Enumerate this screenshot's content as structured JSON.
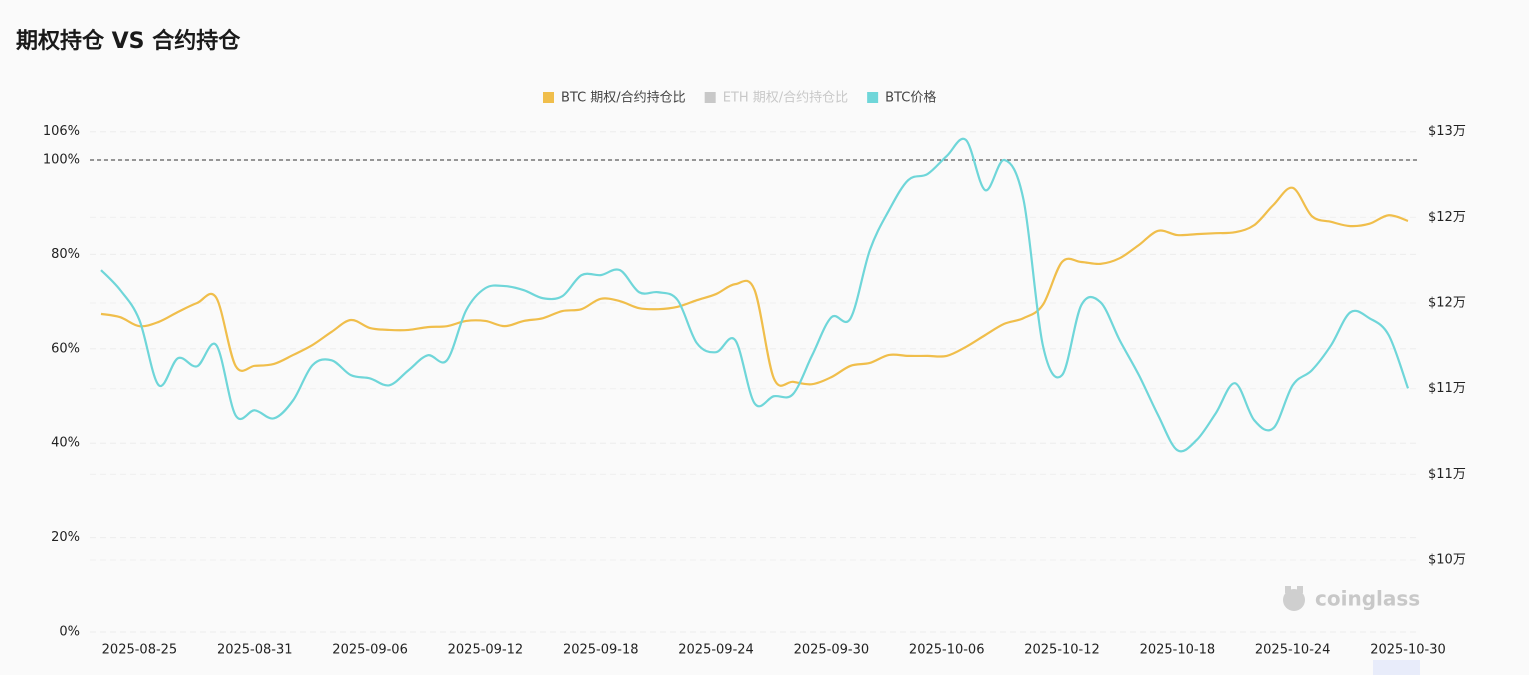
{
  "chart_data": {
    "type": "line",
    "title": "期权持仓 VS 合约持仓",
    "categories": [
      null,
      null,
      "2025-08-25",
      null,
      null,
      null,
      null,
      null,
      "2025-08-31",
      null,
      null,
      null,
      null,
      null,
      "2025-09-06",
      null,
      null,
      null,
      null,
      null,
      "2025-09-12",
      null,
      null,
      null,
      null,
      null,
      "2025-09-18",
      null,
      null,
      null,
      null,
      null,
      "2025-09-24",
      null,
      null,
      null,
      null,
      null,
      "2025-09-30",
      null,
      null,
      null,
      null,
      null,
      "2025-10-06",
      null,
      null,
      null,
      null,
      null,
      "2025-10-12",
      null,
      null,
      null,
      null,
      null,
      "2025-10-18",
      null,
      null,
      null,
      null,
      null,
      "2025-10-24",
      null,
      null,
      null,
      null,
      null,
      "2025-10-30"
    ],
    "series": [
      {
        "name": "BTC 期权/合约持仓比",
        "color": "#f0be4b",
        "values": [
          67.4,
          66.7,
          64.8,
          65.7,
          67.8,
          69.7,
          70.8,
          56.4,
          56.4,
          56.8,
          58.7,
          60.8,
          63.6,
          66.1,
          64.4,
          64.0,
          64.0,
          64.6,
          64.8,
          65.9,
          65.9,
          64.8,
          65.9,
          66.5,
          68.0,
          68.4,
          70.6,
          70.1,
          68.6,
          68.4,
          68.9,
          70.3,
          71.6,
          73.7,
          72.5,
          53.8,
          53.0,
          52.5,
          54.0,
          56.4,
          57.0,
          58.7,
          58.5,
          58.5,
          58.5,
          60.4,
          62.9,
          65.3,
          66.5,
          69.3,
          78.4,
          78.4,
          78.0,
          79.2,
          82.0,
          85.0,
          84.1,
          84.3,
          84.5,
          84.7,
          86.2,
          90.5,
          94.1,
          88.1,
          86.9,
          86.0,
          86.5,
          88.3,
          87.1
        ]
      },
      {
        "name": "ETH 期权/合约持仓比",
        "color": "#c8c8c8",
        "hidden": true
      },
      {
        "name": "BTC价格",
        "color": "#6fd6d9",
        "axis": "y2",
        "values": [
          116922,
          115754,
          114000,
          110205,
          111780,
          111310,
          112540,
          108450,
          108740,
          108270,
          109330,
          111370,
          111660,
          110790,
          110600,
          110200,
          111080,
          111950,
          111660,
          114580,
          115870,
          115990,
          115750,
          115280,
          115400,
          116630,
          116630,
          116920,
          115630,
          115630,
          115170,
          112660,
          112130,
          112830,
          109150,
          109560,
          109680,
          111950,
          114170,
          114110,
          118080,
          120420,
          122180,
          122530,
          123580,
          124520,
          121590,
          123350,
          121010,
          112540,
          110790,
          114870,
          115050,
          112830,
          110790,
          108450,
          106410,
          107000,
          108570,
          110320,
          108160,
          107700,
          110200,
          111080,
          112540,
          114460,
          114110,
          113120,
          110020
        ]
      }
    ],
    "ylim": [
      0,
      106
    ],
    "yticks": [
      {
        "value": 0,
        "label": "0%"
      },
      {
        "value": 20,
        "label": "20%"
      },
      {
        "value": 40,
        "label": "40%"
      },
      {
        "value": 60,
        "label": "60%"
      },
      {
        "value": 80,
        "label": "80%"
      },
      {
        "value": 100,
        "label": "100%"
      },
      {
        "value": 106,
        "label": "106%"
      }
    ],
    "y2lim": [
      95800,
      125000
    ],
    "y2ticks": [
      {
        "value": 100000,
        "label": "$10万"
      },
      {
        "value": 105000,
        "label": "$11万"
      },
      {
        "value": 110000,
        "label": "$11万"
      },
      {
        "value": 115000,
        "label": "$12万"
      },
      {
        "value": 120000,
        "label": "$12万"
      },
      {
        "value": 125000,
        "label": "$13万"
      }
    ],
    "reference_line": 100,
    "grid": true,
    "legend": "top",
    "watermark": "coinglass"
  }
}
